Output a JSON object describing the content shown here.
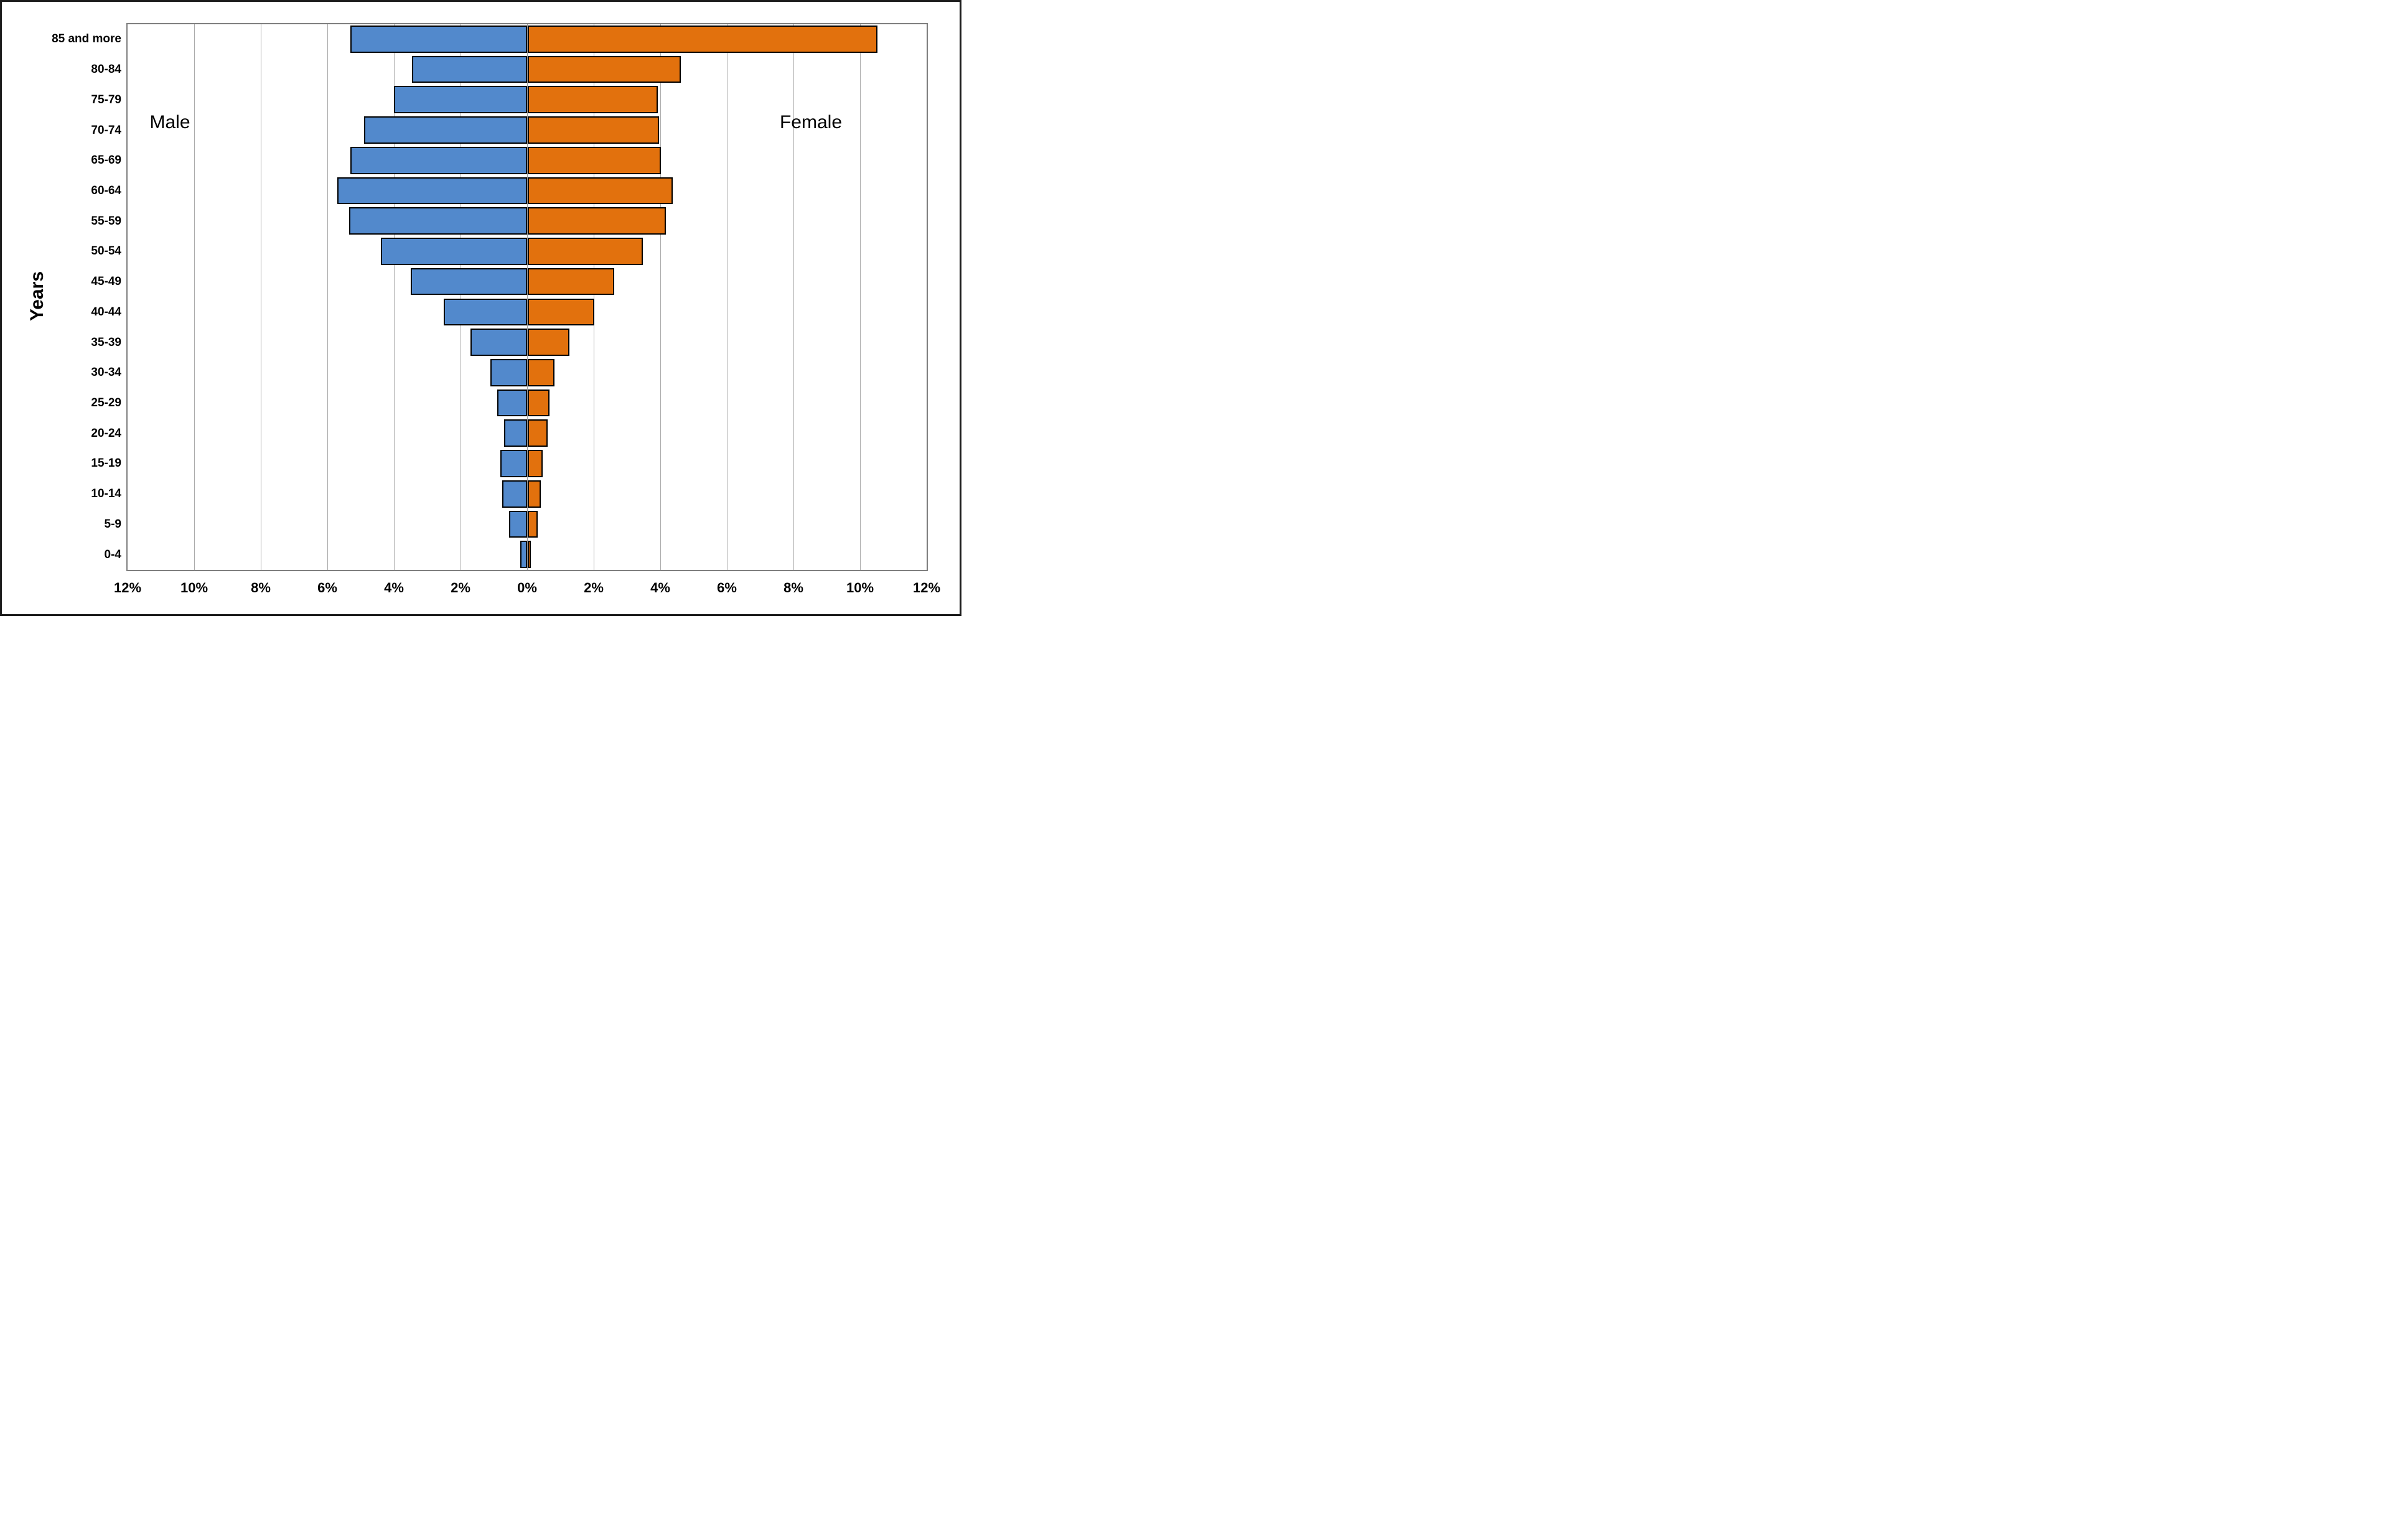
{
  "labels": {
    "male": "Male",
    "female": "Female",
    "years": "Years"
  },
  "colors": {
    "male_fill": "#5289CC",
    "female_fill": "#E2710D",
    "bar_border": "#000000",
    "gridline": "#ABABAB",
    "axis_frame": "#7F7F7F",
    "text": "#000000",
    "background": "#FFFFFF",
    "outer_border": "#1C1C1C"
  },
  "chart_data": {
    "type": "bar",
    "subtype": "population_pyramid",
    "title": "",
    "ylabel": "Years",
    "left_series_label": "Male",
    "right_series_label": "Female",
    "categories_top_to_bottom": [
      "85 and more",
      "80-84",
      "75-79",
      "70-74",
      "65-69",
      "60-64",
      "55-59",
      "50-54",
      "45-49",
      "40-44",
      "35-39",
      "30-34",
      "25-29",
      "20-24",
      "15-19",
      "10-14",
      "5-9",
      "0-4"
    ],
    "series": [
      {
        "name": "Male",
        "side": "left",
        "color": "#5289CC",
        "values_percent": [
          5.3,
          3.45,
          4.0,
          4.9,
          5.3,
          5.7,
          5.35,
          4.4,
          3.5,
          2.5,
          1.7,
          1.1,
          0.9,
          0.7,
          0.8,
          0.75,
          0.55,
          0.2
        ]
      },
      {
        "name": "Female",
        "side": "right",
        "color": "#E2710D",
        "values_percent": [
          10.5,
          4.6,
          3.9,
          3.95,
          4.0,
          4.35,
          4.15,
          3.45,
          2.6,
          2.0,
          1.25,
          0.8,
          0.65,
          0.6,
          0.45,
          0.4,
          0.3,
          0.1
        ]
      }
    ],
    "x_tick_labels": [
      "12%",
      "10%",
      "8%",
      "6%",
      "4%",
      "2%",
      "0%",
      "2%",
      "4%",
      "6%",
      "8%",
      "10%",
      "12%"
    ],
    "x_axis": {
      "min_percent": -12,
      "max_percent": 12,
      "gridline_step_percent": 2,
      "grid": true
    },
    "legend_position": "none"
  }
}
